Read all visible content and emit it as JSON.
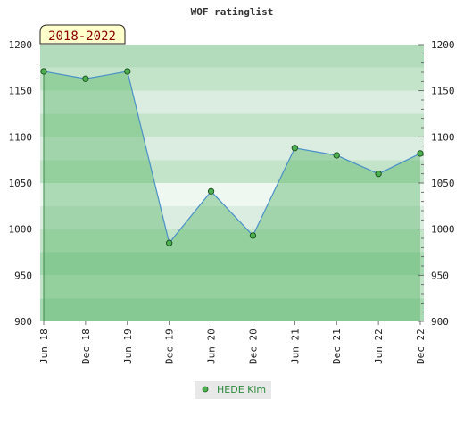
{
  "chart_data": {
    "type": "area",
    "title": "WOF ratinglist",
    "badge": "2018-2022",
    "xlabel": "",
    "ylabel": "",
    "ylim": [
      900,
      1200
    ],
    "yticks": [
      900,
      950,
      1000,
      1050,
      1100,
      1150,
      1200
    ],
    "categories": [
      "Jun 18",
      "Dec 18",
      "Jun 19",
      "Dec 19",
      "Jun 20",
      "Dec 20",
      "Jun 21",
      "Dec 21",
      "Jun 22",
      "Dec 22"
    ],
    "series": [
      {
        "name": "HEDE Kim",
        "values": [
          1171,
          1163,
          1171,
          985,
          1041,
          993,
          1088,
          1080,
          1060,
          1082
        ]
      }
    ],
    "grid": true,
    "legend": "bottom-center",
    "colors": {
      "line": "#4a90c8",
      "fill": "#5cb56a",
      "marker": "#4caf50",
      "badge_bg": "#ffffcc"
    }
  }
}
